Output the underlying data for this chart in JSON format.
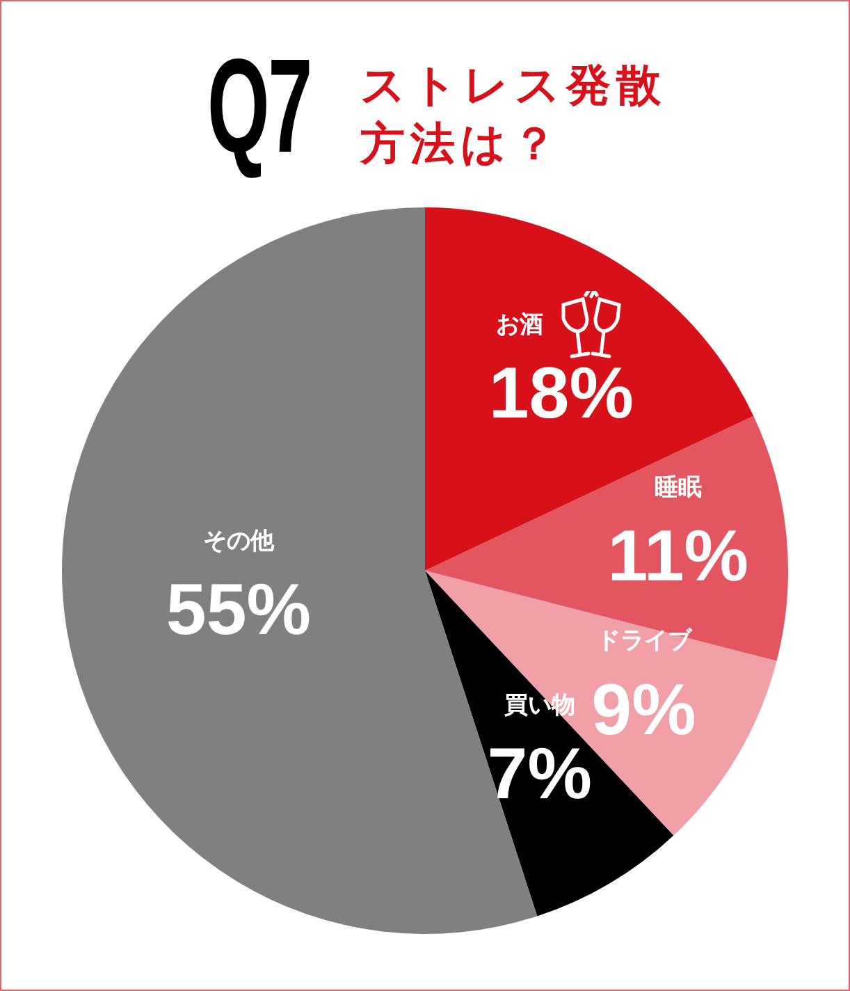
{
  "chart_data": {
    "type": "pie",
    "title": "Q7",
    "subtitle": "ストレス発散方法は？",
    "categories": [
      "お酒",
      "睡眠",
      "ドライブ",
      "買い物",
      "その他"
    ],
    "values": [
      18,
      11,
      9,
      7,
      55
    ],
    "colors": [
      "#d7101a",
      "#e3555f",
      "#f0a0a6",
      "#000000",
      "#808080"
    ],
    "value_labels": [
      "18%",
      "11%",
      "9%",
      "7%",
      "55%"
    ],
    "legend": false
  }
}
